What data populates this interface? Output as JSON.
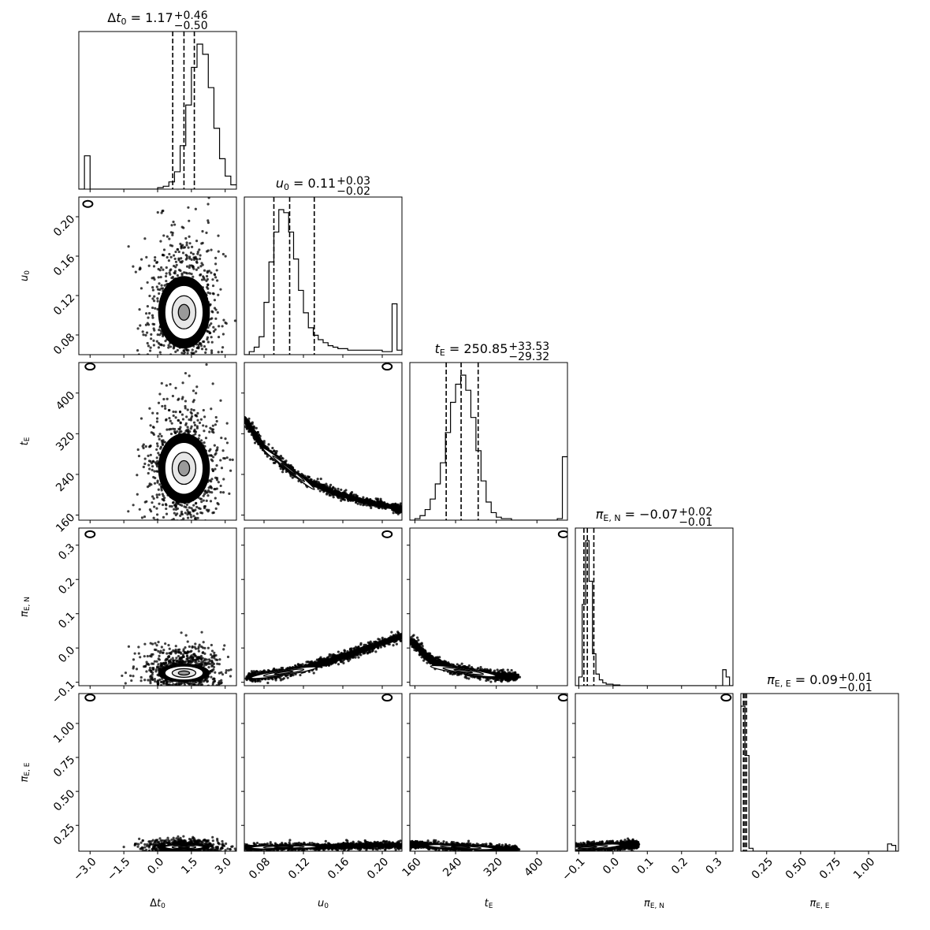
{
  "chart_data": {
    "type": "corner",
    "colors": {
      "ink": "#000000",
      "background": "#ffffff",
      "contour_fill_inner": "#9a9a9a",
      "contour_fill_outer": "#e6e6e6"
    },
    "parameters": [
      {
        "key": "dt0",
        "label": "Δt₀",
        "range": [
          -3.5,
          3.5
        ],
        "ticks": [
          -3.0,
          -1.5,
          0.0,
          1.5,
          3.0
        ],
        "tick_labels": [
          "−3.0",
          "−1.5",
          "0.0",
          "1.5",
          "3.0"
        ],
        "title": "Δt₀ = 1.17",
        "title_plus": "+0.46",
        "title_minus": "−0.50",
        "median": 1.17,
        "quantiles": [
          0.67,
          1.17,
          1.63
        ],
        "histogram": {
          "edges": [
            -3.5,
            -3.25,
            -3.0,
            -2.75,
            -2.5,
            -2.25,
            -2.0,
            -1.75,
            -1.5,
            -1.25,
            -1.0,
            -0.75,
            -0.5,
            -0.25,
            0.0,
            0.25,
            0.5,
            0.75,
            1.0,
            1.25,
            1.5,
            1.75,
            2.0,
            2.25,
            2.5,
            2.75,
            3.0,
            3.25,
            3.5
          ],
          "counts": [
            0,
            0.23,
            0,
            0,
            0,
            0,
            0,
            0,
            0,
            0,
            0,
            0,
            0,
            0,
            0.01,
            0.02,
            0.05,
            0.12,
            0.3,
            0.58,
            0.84,
            1.0,
            0.93,
            0.7,
            0.42,
            0.21,
            0.09,
            0.03
          ]
        }
      },
      {
        "key": "u0",
        "label": "u₀",
        "range": [
          0.06,
          0.22
        ],
        "ticks": [
          0.08,
          0.12,
          0.16,
          0.2
        ],
        "tick_labels": [
          "0.08",
          "0.12",
          "0.16",
          "0.20"
        ],
        "title": "u₀ = 0.11",
        "title_plus": "+0.03",
        "title_minus": "−0.02",
        "median": 0.11,
        "quantiles": [
          0.09,
          0.106,
          0.131
        ],
        "histogram": {
          "edges": [
            0.06,
            0.065,
            0.07,
            0.075,
            0.08,
            0.085,
            0.09,
            0.095,
            0.1,
            0.105,
            0.11,
            0.115,
            0.12,
            0.125,
            0.13,
            0.135,
            0.14,
            0.145,
            0.15,
            0.155,
            0.16,
            0.165,
            0.17,
            0.175,
            0.18,
            0.185,
            0.19,
            0.195,
            0.2,
            0.205,
            0.21,
            0.215,
            0.22
          ],
          "counts": [
            0,
            0.02,
            0.05,
            0.12,
            0.35,
            0.62,
            0.82,
            0.97,
            0.95,
            0.82,
            0.64,
            0.43,
            0.28,
            0.18,
            0.13,
            0.1,
            0.08,
            0.06,
            0.05,
            0.04,
            0.04,
            0.03,
            0.03,
            0.03,
            0.03,
            0.03,
            0.03,
            0.03,
            0.02,
            0.02,
            0.34,
            0.03
          ]
        }
      },
      {
        "key": "tE",
        "label": "t_E",
        "range": [
          150,
          460
        ],
        "ticks": [
          160,
          240,
          320,
          400
        ],
        "tick_labels": [
          "160",
          "240",
          "320",
          "400"
        ],
        "title": "t_E = 250.85",
        "title_plus": "+33.53",
        "title_minus": "−29.32",
        "median": 250.85,
        "quantiles": [
          221.5,
          250.85,
          284.4
        ],
        "histogram": {
          "edges": [
            150,
            160,
            170,
            180,
            190,
            200,
            210,
            220,
            230,
            240,
            250,
            260,
            270,
            280,
            290,
            300,
            310,
            320,
            330,
            340,
            350,
            360,
            370,
            380,
            390,
            400,
            410,
            420,
            430,
            440,
            450,
            460
          ],
          "counts": [
            0,
            0.01,
            0.03,
            0.07,
            0.14,
            0.24,
            0.38,
            0.58,
            0.78,
            0.9,
            0.96,
            0.86,
            0.68,
            0.46,
            0.26,
            0.12,
            0.05,
            0.02,
            0.01,
            0.01,
            0,
            0,
            0,
            0,
            0,
            0,
            0,
            0,
            0,
            0.01,
            0.42
          ]
        }
      },
      {
        "key": "piEN",
        "label": "π_E,N",
        "range": [
          -0.11,
          0.35
        ],
        "ticks": [
          -0.1,
          0.0,
          0.1,
          0.2,
          0.3
        ],
        "tick_labels": [
          "−0.1",
          "0.0",
          "0.1",
          "0.2",
          "0.3"
        ],
        "title": "π_E,N = −0.07",
        "title_plus": "+0.02",
        "title_minus": "−0.01",
        "median": -0.07,
        "quantiles": [
          -0.085,
          -0.075,
          -0.056
        ],
        "histogram": {
          "edges": [
            -0.11,
            -0.1,
            -0.09,
            -0.08,
            -0.07,
            -0.06,
            -0.05,
            -0.04,
            -0.03,
            -0.02,
            -0.01,
            0.0,
            0.01,
            0.02,
            0.03,
            0.04,
            0.05,
            0.06,
            0.07,
            0.08,
            0.09,
            0.1,
            0.11,
            0.12,
            0.13,
            0.14,
            0.15,
            0.16,
            0.17,
            0.18,
            0.19,
            0.2,
            0.21,
            0.22,
            0.23,
            0.24,
            0.25,
            0.26,
            0.27,
            0.28,
            0.29,
            0.3,
            0.31,
            0.32,
            0.33,
            0.34,
            0.35
          ],
          "counts": [
            0,
            0.06,
            0.56,
            1.0,
            0.72,
            0.22,
            0.08,
            0.04,
            0.02,
            0.01,
            0.01,
            0.005,
            0.005,
            0,
            0,
            0,
            0,
            0,
            0,
            0,
            0,
            0,
            0,
            0,
            0,
            0,
            0,
            0,
            0,
            0,
            0,
            0,
            0,
            0,
            0,
            0,
            0,
            0,
            0,
            0,
            0,
            0,
            0,
            0.11,
            0.06,
            0
          ]
        }
      },
      {
        "key": "piEE",
        "label": "π_E,E",
        "range": [
          0.06,
          1.22
        ],
        "ticks": [
          0.25,
          0.5,
          0.75,
          1.0
        ],
        "tick_labels": [
          "0.25",
          "0.50",
          "0.75",
          "1.00"
        ],
        "title": "π_E,E = 0.09",
        "title_plus": "+0.01",
        "title_minus": "−0.01",
        "median": 0.09,
        "quantiles": [
          0.079,
          0.09,
          0.102
        ],
        "histogram": {
          "edges": [
            0.06,
            0.09,
            0.12,
            0.15,
            0.18,
            0.21,
            0.24,
            0.27,
            0.3,
            0.33,
            0.36,
            0.39,
            0.42,
            0.45,
            0.48,
            0.51,
            0.54,
            0.57,
            0.6,
            0.63,
            0.66,
            0.69,
            0.72,
            0.75,
            0.78,
            0.81,
            0.84,
            0.87,
            0.9,
            0.93,
            0.96,
            0.99,
            1.02,
            1.05,
            1.08,
            1.11,
            1.14,
            1.17,
            1.2,
            1.22
          ],
          "counts": [
            1.0,
            0.66,
            0.02,
            0,
            0,
            0,
            0,
            0,
            0,
            0,
            0,
            0,
            0,
            0,
            0,
            0,
            0,
            0,
            0,
            0,
            0,
            0,
            0,
            0,
            0,
            0,
            0,
            0,
            0,
            0,
            0,
            0,
            0,
            0,
            0,
            0,
            0.05,
            0.04,
            0
          ]
        }
      }
    ],
    "pairs": [
      {
        "x": "dt0",
        "y": "u0",
        "center": [
          1.17,
          0.103
        ],
        "sigma": [
          0.5,
          0.016
        ],
        "rho": 0.0,
        "cloud_sigma": [
          0.75,
          0.038
        ],
        "outlier": [
          -3.1,
          0.213
        ]
      },
      {
        "x": "dt0",
        "y": "tE",
        "center": [
          1.17,
          252
        ],
        "sigma": [
          0.5,
          30
        ],
        "rho": 0.0,
        "cloud_sigma": [
          0.75,
          58
        ],
        "outlier": [
          -3.0,
          452
        ]
      },
      {
        "x": "u0",
        "y": "tE",
        "curve": [
          [
            0.06,
            350
          ],
          [
            0.08,
            292
          ],
          [
            0.1,
            258
          ],
          [
            0.12,
            230
          ],
          [
            0.15,
            205
          ],
          [
            0.18,
            188
          ],
          [
            0.21,
            176
          ],
          [
            0.22,
            170
          ]
        ],
        "width": 0.12,
        "dense_at": 0.105,
        "outlier": [
          0.205,
          452
        ]
      },
      {
        "x": "dt0",
        "y": "piEN",
        "center": [
          1.17,
          -0.073
        ],
        "sigma": [
          0.5,
          0.012
        ],
        "rho": 0.0,
        "cloud_sigma": [
          0.75,
          0.035
        ],
        "outlier": [
          -3.0,
          0.332
        ]
      },
      {
        "x": "u0",
        "y": "piEN",
        "curve": [
          [
            0.065,
            -0.085
          ],
          [
            0.09,
            -0.078
          ],
          [
            0.12,
            -0.06
          ],
          [
            0.15,
            -0.035
          ],
          [
            0.18,
            -0.005
          ],
          [
            0.22,
            0.035
          ]
        ],
        "width": 0.14,
        "dense_at": 0.1,
        "outlier": [
          0.205,
          0.332
        ]
      },
      {
        "x": "tE",
        "y": "piEN",
        "curve": [
          [
            155,
            0.02
          ],
          [
            190,
            -0.035
          ],
          [
            230,
            -0.06
          ],
          [
            270,
            -0.072
          ],
          [
            320,
            -0.08
          ],
          [
            360,
            -0.083
          ]
        ],
        "width": 0.14,
        "dense_at": 255,
        "outlier": [
          452,
          0.332
        ]
      },
      {
        "x": "dt0",
        "y": "piEE",
        "center": [
          1.17,
          0.09
        ],
        "sigma": [
          0.5,
          0.01
        ],
        "rho": 0.0,
        "cloud_sigma": [
          0.75,
          0.025
        ],
        "outlier": [
          -3.0,
          1.19
        ]
      },
      {
        "x": "u0",
        "y": "piEE",
        "curve": [
          [
            0.06,
            0.085
          ],
          [
            0.1,
            0.09
          ],
          [
            0.14,
            0.095
          ],
          [
            0.18,
            0.1
          ],
          [
            0.22,
            0.105
          ]
        ],
        "width": 0.1,
        "dense_at": 0.1,
        "outlier": [
          0.205,
          1.19
        ]
      },
      {
        "x": "tE",
        "y": "piEE",
        "curve": [
          [
            150,
            0.11
          ],
          [
            200,
            0.1
          ],
          [
            250,
            0.09
          ],
          [
            300,
            0.082
          ],
          [
            360,
            0.076
          ]
        ],
        "width": 0.1,
        "dense_at": 250,
        "outlier": [
          452,
          1.19
        ]
      },
      {
        "x": "piEN",
        "y": "piEE",
        "curve": [
          [
            -0.11,
            0.08
          ],
          [
            -0.08,
            0.086
          ],
          [
            -0.04,
            0.094
          ],
          [
            0.0,
            0.1
          ],
          [
            0.04,
            0.105
          ],
          [
            0.07,
            0.109
          ]
        ],
        "width": 0.12,
        "dense_at": -0.075,
        "outlier": [
          0.33,
          1.19
        ]
      }
    ]
  }
}
